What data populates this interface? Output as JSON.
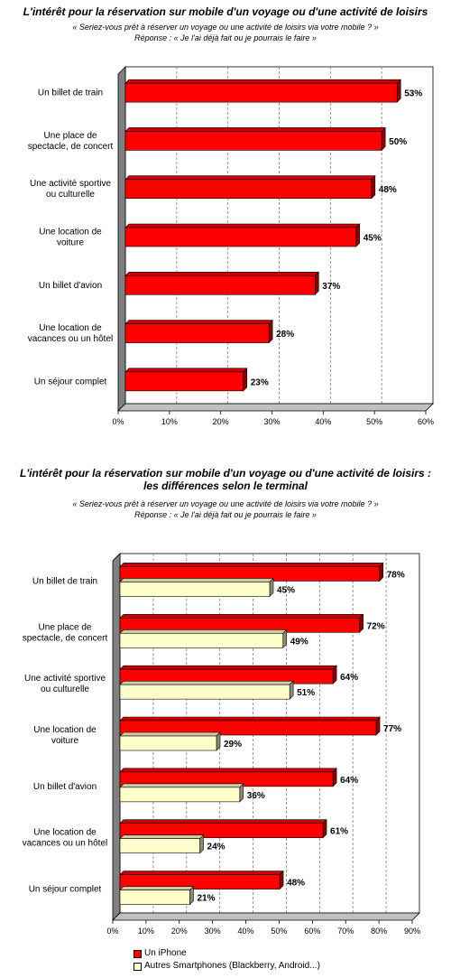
{
  "chart1": {
    "title": "L'intérêt pour la réservation sur mobile d'un voyage ou d'une activité de loisirs",
    "question": "« Seriez-vous prêt à réserver un voyage ou une activité de loisirs via votre mobile ? »",
    "answer": "Réponse : « Je l'ai déjà fait ou je pourrais le faire »"
  },
  "chart2": {
    "title_line1": "L'intérêt pour la réservation sur mobile d'un voyage ou d'une activité de loisirs :",
    "title_line2": "les différences selon le terminal",
    "question": "« Seriez-vous prêt à réserver un voyage ou une activité de loisirs via votre mobile ? »",
    "answer": "Réponse : « Je l'ai déjà fait ou je pourrais le faire »"
  },
  "colors": {
    "iphone": "#ff0000",
    "others": "#ffffcc",
    "wall": "#808080",
    "grid": "#808080"
  },
  "chart_data": [
    {
      "type": "bar",
      "orientation": "horizontal",
      "categories": [
        [
          "Un billet de train"
        ],
        [
          "Une place de",
          "spectacle, de concert"
        ],
        [
          "Une activité sportive",
          "ou culturelle"
        ],
        [
          "Une location de",
          "voiture"
        ],
        [
          "Un billet d'avion"
        ],
        [
          "Une location de",
          "vacances ou un hôtel"
        ],
        [
          "Un séjour complet"
        ]
      ],
      "values": [
        53,
        50,
        48,
        45,
        37,
        28,
        23
      ],
      "value_labels": [
        "53%",
        "50%",
        "48%",
        "45%",
        "37%",
        "28%",
        "23%"
      ],
      "xlim": [
        0,
        60
      ],
      "ticks": [
        "0%",
        "10%",
        "20%",
        "30%",
        "40%",
        "50%",
        "60%"
      ],
      "grid": true
    },
    {
      "type": "bar",
      "orientation": "horizontal",
      "categories": [
        [
          "Un billet de train"
        ],
        [
          "Une place de",
          "spectacle, de concert"
        ],
        [
          "Une activité sportive",
          "ou culturelle"
        ],
        [
          "Une location de",
          "voiture"
        ],
        [
          "Un billet d'avion"
        ],
        [
          "Une location de",
          "vacances ou un hôtel"
        ],
        [
          "Un séjour complet"
        ]
      ],
      "series": [
        {
          "name": "Un iPhone",
          "values": [
            78,
            72,
            64,
            77,
            64,
            61,
            48
          ],
          "value_labels": [
            "78%",
            "72%",
            "64%",
            "77%",
            "64%",
            "61%",
            "48%"
          ]
        },
        {
          "name": "Autres Smartphones (Blackberry, Android...)",
          "values": [
            45,
            49,
            51,
            29,
            36,
            24,
            21
          ],
          "value_labels": [
            "45%",
            "49%",
            "51%",
            "29%",
            "36%",
            "24%",
            "21%"
          ]
        }
      ],
      "xlim": [
        0,
        90
      ],
      "ticks": [
        "0%",
        "10%",
        "20%",
        "30%",
        "40%",
        "50%",
        "60%",
        "70%",
        "80%",
        "90%"
      ],
      "grid": true,
      "legend_position": "bottom"
    }
  ]
}
